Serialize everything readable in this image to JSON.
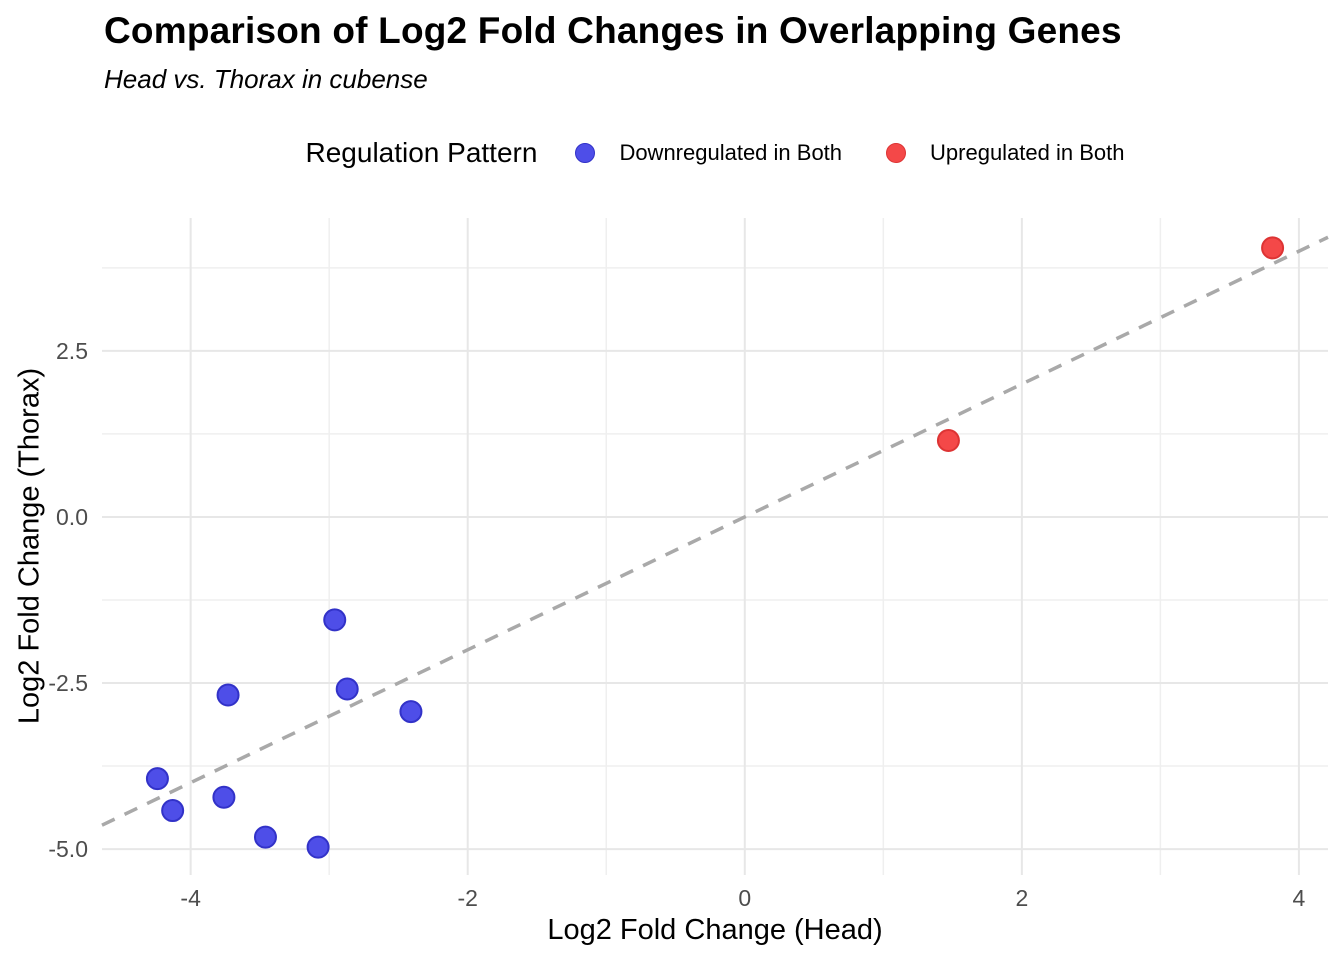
{
  "title": "Comparison of Log2 Fold Changes in Overlapping Genes",
  "subtitle": "Head vs. Thorax in cubense",
  "legend": {
    "title": "Regulation Pattern"
  },
  "chart_data": {
    "type": "scatter",
    "title": "Comparison of Log2 Fold Changes in Overlapping Genes",
    "subtitle": "Head vs. Thorax in cubense",
    "xlabel": "Log2 Fold Change (Head)",
    "ylabel": "Log2 Fold Change (Thorax)",
    "xlim": [
      -4.64,
      4.21
    ],
    "ylim": [
      -5.39,
      4.5
    ],
    "x_ticks": [
      -4,
      -2,
      0,
      2,
      4
    ],
    "x_tick_labels": [
      "-4",
      "-2",
      "0",
      "2",
      "4"
    ],
    "y_ticks": [
      -5,
      -2.5,
      0,
      2.5
    ],
    "y_tick_labels": [
      "-5.0",
      "-2.5",
      "0.0",
      "2.5"
    ],
    "x_minor_gridlines": [
      -3,
      -1,
      1,
      3
    ],
    "y_minor_gridlines": [
      -3.75,
      -1.25,
      1.25,
      3.75
    ],
    "grid": true,
    "legend_position": "top-center",
    "legend_title": "Regulation Pattern",
    "colors": {
      "grid_major": "#e7e7e7",
      "grid_minor": "#efefef",
      "tick_label": "#4d4d4d",
      "reference_line": "#a9a9a9"
    },
    "reference_line": {
      "kind": "identity",
      "slope": 1,
      "intercept": 0,
      "style": "dashed",
      "color": "#a9a9a9"
    },
    "series": [
      {
        "name": "Downregulated in Both",
        "fill": "#4e4ee8",
        "stroke": "#3232c8",
        "points": [
          [
            -2.96,
            -1.55
          ],
          [
            -3.73,
            -2.68
          ],
          [
            -2.87,
            -2.59
          ],
          [
            -2.41,
            -2.93
          ],
          [
            -4.24,
            -3.94
          ],
          [
            -4.13,
            -4.42
          ],
          [
            -3.76,
            -4.22
          ],
          [
            -3.46,
            -4.82
          ],
          [
            -3.08,
            -4.97
          ]
        ]
      },
      {
        "name": "Upregulated in Both",
        "fill": "#f44848",
        "stroke": "#dd3434",
        "points": [
          [
            1.47,
            1.15
          ],
          [
            3.81,
            4.05
          ]
        ]
      }
    ]
  }
}
